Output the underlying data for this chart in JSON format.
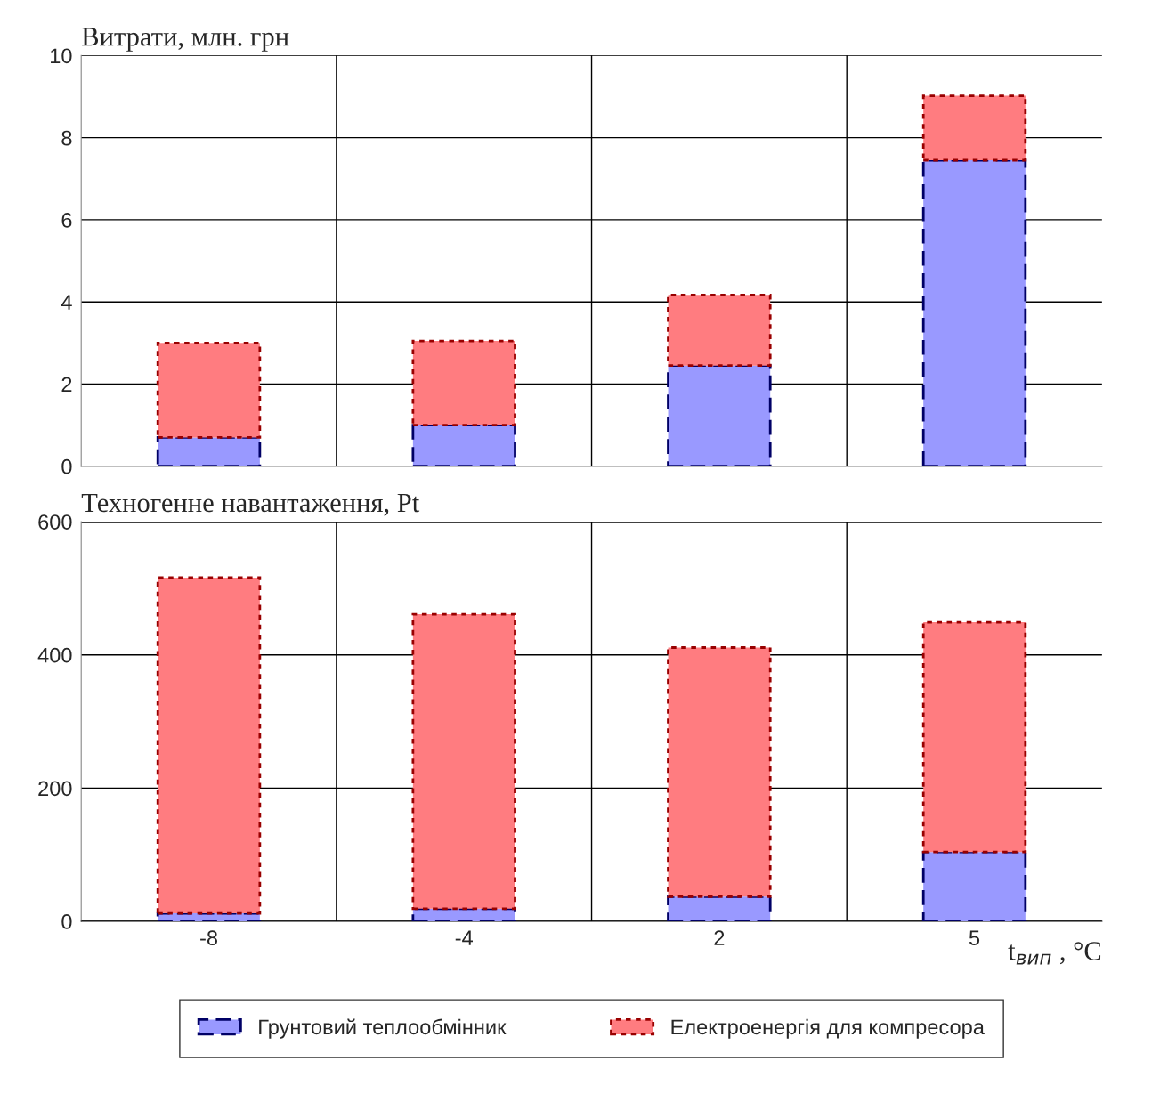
{
  "chart_data": [
    {
      "type": "bar",
      "title": "Витрати, млн. грн",
      "categories": [
        "-8",
        "-4",
        "2",
        "5"
      ],
      "stacked": true,
      "ylim": [
        0,
        10
      ],
      "yticks": [
        0,
        2,
        4,
        6,
        8,
        10
      ],
      "grid": true,
      "tick_labels": "y",
      "series": [
        {
          "color": "#9999ff",
          "line_style": "dashed",
          "values": [
            0.7,
            1.0,
            2.45,
            7.45
          ]
        },
        {
          "color": "#ff7c80",
          "line_style": "dotted",
          "values": [
            2.3,
            2.05,
            1.72,
            1.57
          ]
        }
      ]
    },
    {
      "type": "bar",
      "title": "Техногенне навантаження, Pt",
      "xlabel": "t$_{вип}$ , °C",
      "categories": [
        "-8",
        "-4",
        "2",
        "5"
      ],
      "stacked": true,
      "ylim": [
        0,
        600
      ],
      "yticks": [
        0,
        200,
        400,
        600
      ],
      "grid": true,
      "legend": "bottom",
      "series": [
        {
          "name": "Грунтовий теплообмінник",
          "color": "#9999ff",
          "line_style": "dashed",
          "values": [
            12,
            19,
            37,
            104
          ]
        },
        {
          "name": "Електроенергія для компресора",
          "color": "#ff7c80",
          "line_style": "dotted",
          "values": [
            504,
            442,
            374,
            345
          ]
        }
      ]
    }
  ]
}
